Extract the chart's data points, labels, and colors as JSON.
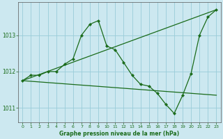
{
  "title": "Graphe pression niveau de la mer (hPa)",
  "background_color": "#cce8f0",
  "grid_color": "#99ccd9",
  "line_color": "#1a6b1a",
  "marker_color": "#1a6b1a",
  "xlim": [
    -0.5,
    23.5
  ],
  "ylim": [
    1010.6,
    1013.9
  ],
  "yticks": [
    1011,
    1012,
    1013
  ],
  "xticks": [
    0,
    1,
    2,
    3,
    4,
    5,
    6,
    7,
    8,
    9,
    10,
    11,
    12,
    13,
    14,
    15,
    16,
    17,
    18,
    19,
    20,
    21,
    22,
    23
  ],
  "series1_x": [
    0,
    1,
    2,
    3,
    4,
    5,
    6,
    7,
    8,
    9,
    10,
    11,
    12,
    13,
    14,
    15,
    16,
    17,
    18,
    19,
    20,
    21,
    22,
    23
  ],
  "series1_y": [
    1011.75,
    1011.9,
    1011.9,
    1012.0,
    1012.0,
    1012.2,
    1012.35,
    1013.0,
    1013.3,
    1013.4,
    1012.7,
    1012.6,
    1012.25,
    1011.9,
    1011.65,
    1011.6,
    1011.4,
    1011.1,
    1010.85,
    1011.35,
    1011.95,
    1013.0,
    1013.5,
    1013.7
  ],
  "series2_x": [
    0,
    23
  ],
  "series2_y": [
    1011.75,
    1013.7
  ],
  "series3_x": [
    0,
    23
  ],
  "series3_y": [
    1011.75,
    1011.35
  ]
}
